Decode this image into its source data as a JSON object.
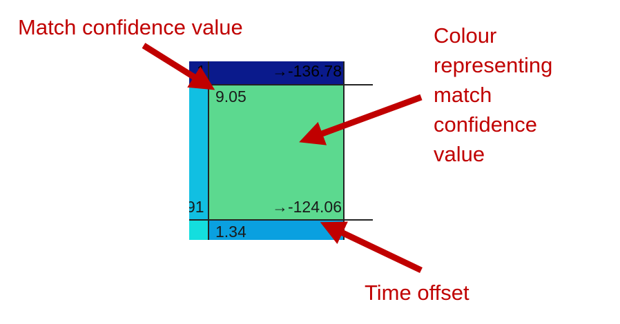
{
  "annotations": {
    "match_confidence_label": "Match confidence value",
    "colour_label_lines": [
      "Colour",
      "representing",
      "match",
      "confidence",
      "value"
    ],
    "time_offset_label": "Time offset"
  },
  "cells": {
    "top_row_time_offset": "→-136.78",
    "top_row_left_fragment": "1",
    "main_confidence": "9.05",
    "main_time_offset": "→-124.06",
    "left_fragment": "91",
    "bottom_confidence": "1.34"
  },
  "colors": {
    "annotation_red": "#c00000",
    "cell_top_navy": "#0a1a8c",
    "cell_main_green": "#5cd98f",
    "cell_left_cyan": "#11bfe2",
    "cell_bottom_blue": "#0aa0e0",
    "cell_bottom_left_cyan": "#14dede"
  }
}
